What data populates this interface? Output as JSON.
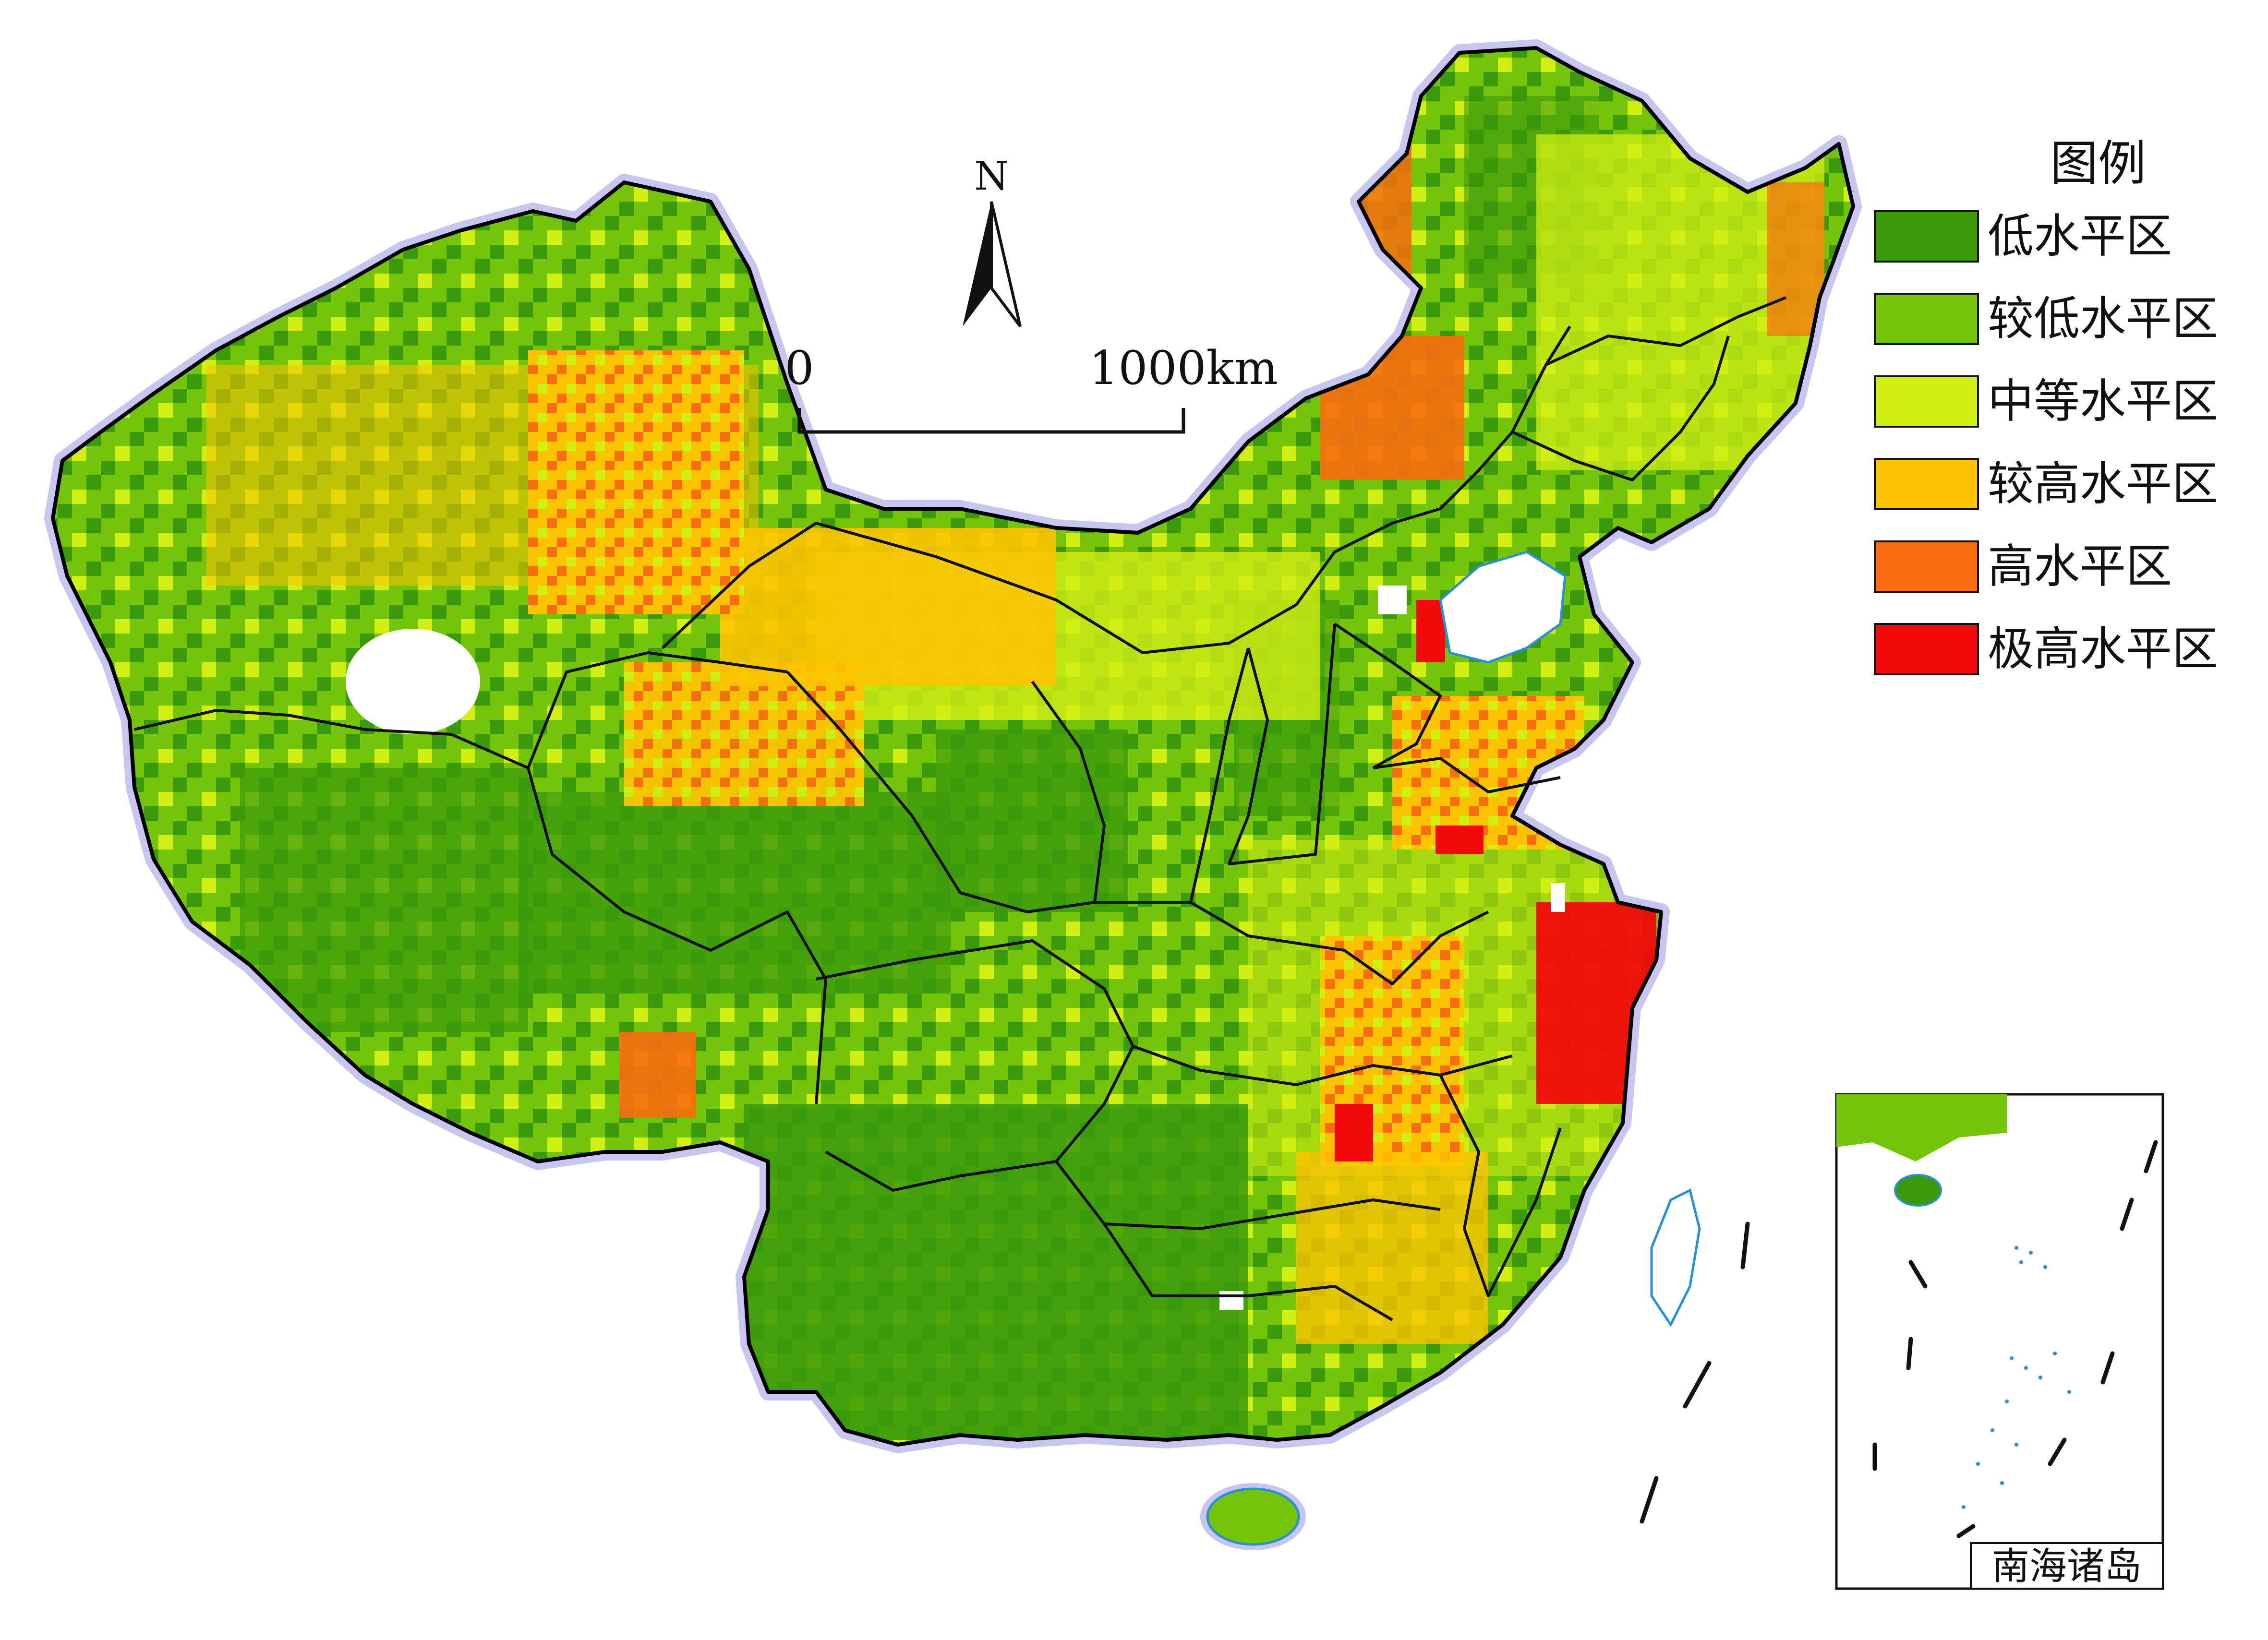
{
  "north": {
    "label": "N"
  },
  "scale": {
    "start": "0",
    "end": "1000km"
  },
  "legend": {
    "title": "图例",
    "items": [
      {
        "label": "低水平区",
        "color": "#3a9a0a"
      },
      {
        "label": "较低水平区",
        "color": "#74c40a"
      },
      {
        "label": "中等水平区",
        "color": "#d2ef14"
      },
      {
        "label": "较高水平区",
        "color": "#fcc400"
      },
      {
        "label": "高水平区",
        "color": "#f86e0e"
      },
      {
        "label": "极高水平区",
        "color": "#f00a0a"
      }
    ]
  },
  "inset": {
    "label": "南海诸岛"
  },
  "colors": {
    "sea": "#2a8fd6",
    "border": "#111111",
    "halo": "#c6c6f0"
  }
}
